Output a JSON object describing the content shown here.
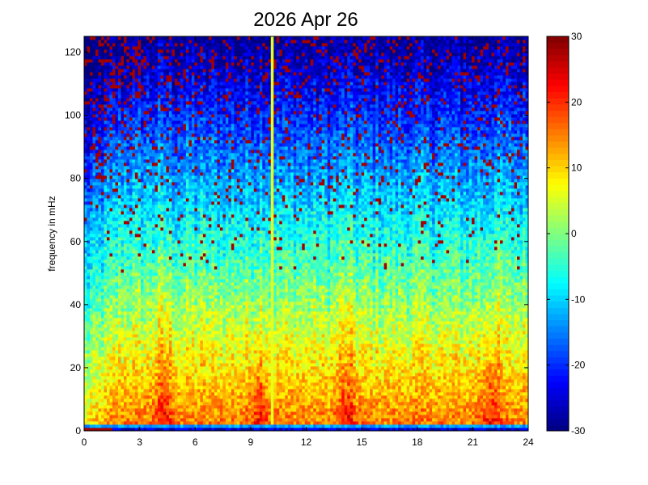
{
  "chart_data": {
    "type": "heatmap",
    "title": "2026 Apr 26",
    "xlabel": "",
    "ylabel": "frequency in mHz",
    "xlim": [
      0,
      24
    ],
    "ylim": [
      0,
      125
    ],
    "xticks": [
      "0",
      "3",
      "6",
      "9",
      "12",
      "15",
      "18",
      "21",
      "24"
    ],
    "yticks": [
      "0",
      "20",
      "40",
      "60",
      "80",
      "100",
      "120"
    ],
    "colormap": "jet",
    "clim": [
      -30,
      30
    ],
    "colorbar_ticks": [
      "-30",
      "-20",
      "-10",
      "0",
      "10",
      "20",
      "30"
    ],
    "grid": false,
    "description_of_values": "spectral power: high (10 to 25) below 10 mHz, decreasing with frequency to about -25 near 120 mHz; enhanced bursts near hours 4, 9.5, 14, 22; narrow vertical line near hour 10.2 across all frequencies",
    "events_hours": [
      4.3,
      9.5,
      14.2,
      22.0
    ],
    "vertical_line_hour": 10.2
  }
}
